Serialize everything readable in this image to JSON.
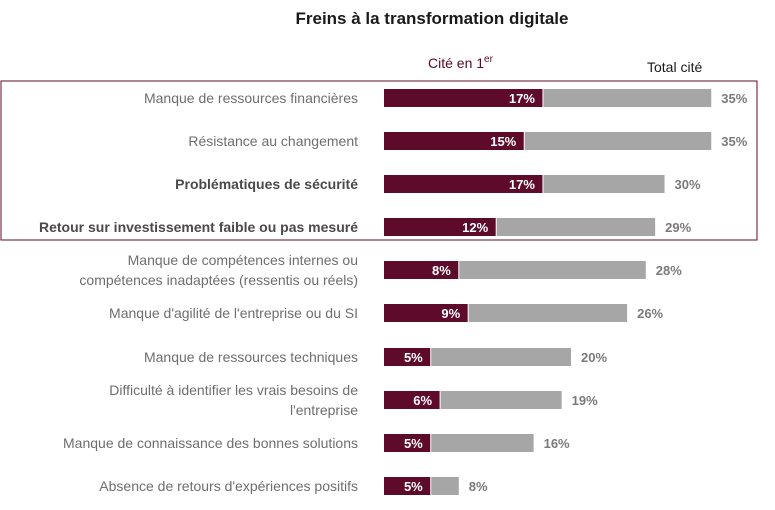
{
  "chart_data": {
    "type": "bar",
    "orientation": "horizontal",
    "title": "Freins à la transformation digitale",
    "legend": {
      "first_label": "Cité en 1",
      "first_sup": "er",
      "total_label": "Total cité",
      "placement": "top"
    },
    "colors": {
      "first": "#5e0b2b",
      "total": "#a6a6a6",
      "highlight_border": "#5e0b2b"
    },
    "grid": false,
    "highlighted_categories": [
      0,
      1,
      2,
      3
    ],
    "categories": [
      [
        "Manque de ressources financières"
      ],
      [
        "Résistance au changement"
      ],
      [
        "Problématiques de sécurité"
      ],
      [
        "Retour sur investissement faible ou pas mesuré"
      ],
      [
        "Manque de compétences internes ou",
        "compétences inadaptées (ressentis ou réels)"
      ],
      [
        "Manque d'agilité de l'entreprise ou du SI"
      ],
      [
        "Manque de ressources techniques"
      ],
      [
        "Difficulté à identifier les vrais besoins de",
        "l'entreprise"
      ],
      [
        "Manque de connaissance des bonnes solutions"
      ],
      [
        "Absence de retours d'expériences positifs"
      ]
    ],
    "series": [
      {
        "name": "Cité en 1er",
        "values": [
          17,
          15,
          17,
          12,
          8,
          9,
          5,
          6,
          5,
          5
        ]
      },
      {
        "name": "Total cité",
        "values": [
          35,
          35,
          30,
          29,
          28,
          26,
          20,
          19,
          16,
          8
        ]
      }
    ],
    "value_suffix": "%"
  }
}
